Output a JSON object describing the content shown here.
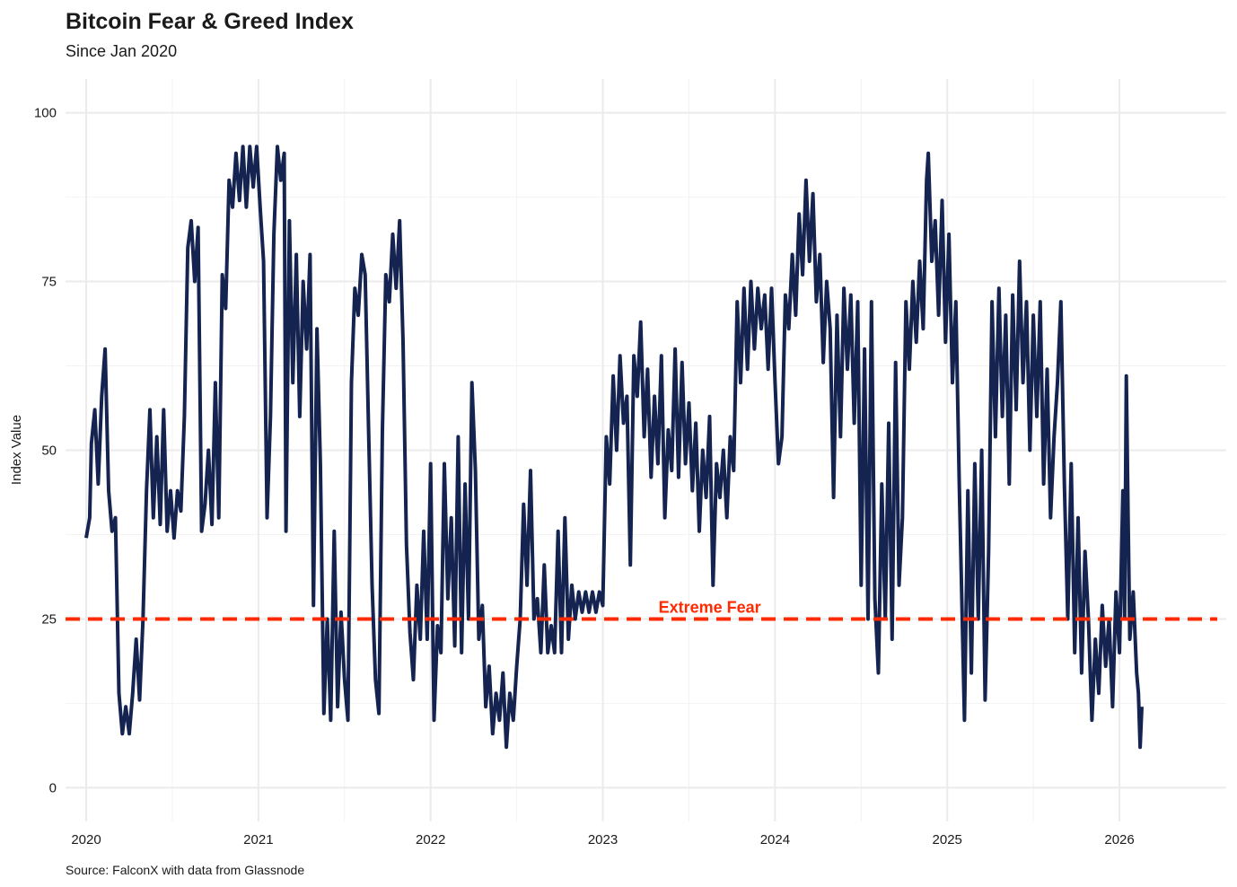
{
  "chart_data": {
    "type": "line",
    "title": "Bitcoin Fear & Greed Index",
    "subtitle": "Since Jan 2020",
    "ylabel": "Index Value",
    "caption": "Source: FalconX with data from Glassnode",
    "xlim": [
      2019.88,
      2026.62
    ],
    "xticks": [
      2020,
      2021,
      2022,
      2023,
      2024,
      2025,
      2026
    ],
    "ylim": [
      -5,
      105
    ],
    "yticks": [
      0,
      25,
      50,
      75,
      100
    ],
    "grid": true,
    "hline": {
      "value": 25,
      "label": "Extreme Fear",
      "color": "#ff2a00"
    },
    "x": [
      2020.0,
      2020.02,
      2020.03,
      2020.05,
      2020.07,
      2020.09,
      2020.11,
      2020.13,
      2020.15,
      2020.17,
      2020.19,
      2020.21,
      2020.23,
      2020.25,
      2020.27,
      2020.29,
      2020.31,
      2020.33,
      2020.35,
      2020.37,
      2020.39,
      2020.41,
      2020.43,
      2020.45,
      2020.47,
      2020.49,
      2020.51,
      2020.53,
      2020.55,
      2020.57,
      2020.59,
      2020.61,
      2020.63,
      2020.65,
      2020.67,
      2020.69,
      2020.71,
      2020.73,
      2020.75,
      2020.77,
      2020.79,
      2020.81,
      2020.83,
      2020.85,
      2020.87,
      2020.89,
      2020.91,
      2020.93,
      2020.95,
      2020.97,
      2020.99,
      2021.01,
      2021.03,
      2021.05,
      2021.07,
      2021.09,
      2021.11,
      2021.13,
      2021.15,
      2021.16,
      2021.18,
      2021.2,
      2021.22,
      2021.24,
      2021.26,
      2021.28,
      2021.3,
      2021.32,
      2021.34,
      2021.36,
      2021.38,
      2021.4,
      2021.42,
      2021.44,
      2021.46,
      2021.48,
      2021.5,
      2021.52,
      2021.54,
      2021.56,
      2021.58,
      2021.6,
      2021.62,
      2021.64,
      2021.66,
      2021.68,
      2021.7,
      2021.72,
      2021.74,
      2021.76,
      2021.78,
      2021.8,
      2021.82,
      2021.84,
      2021.86,
      2021.88,
      2021.9,
      2021.92,
      2021.94,
      2021.96,
      2021.98,
      2022.0,
      2022.02,
      2022.04,
      2022.06,
      2022.08,
      2022.1,
      2022.12,
      2022.14,
      2022.16,
      2022.18,
      2022.2,
      2022.22,
      2022.24,
      2022.26,
      2022.28,
      2022.3,
      2022.32,
      2022.34,
      2022.36,
      2022.38,
      2022.4,
      2022.42,
      2022.44,
      2022.46,
      2022.48,
      2022.5,
      2022.52,
      2022.54,
      2022.56,
      2022.58,
      2022.6,
      2022.62,
      2022.64,
      2022.66,
      2022.68,
      2022.7,
      2022.72,
      2022.74,
      2022.76,
      2022.78,
      2022.8,
      2022.82,
      2022.84,
      2022.86,
      2022.88,
      2022.9,
      2022.92,
      2022.94,
      2022.96,
      2022.98,
      2023.0,
      2023.02,
      2023.04,
      2023.06,
      2023.08,
      2023.1,
      2023.12,
      2023.14,
      2023.16,
      2023.18,
      2023.2,
      2023.22,
      2023.24,
      2023.26,
      2023.28,
      2023.3,
      2023.32,
      2023.34,
      2023.36,
      2023.38,
      2023.4,
      2023.42,
      2023.44,
      2023.46,
      2023.48,
      2023.5,
      2023.52,
      2023.54,
      2023.56,
      2023.58,
      2023.6,
      2023.62,
      2023.64,
      2023.66,
      2023.68,
      2023.7,
      2023.72,
      2023.74,
      2023.76,
      2023.78,
      2023.8,
      2023.82,
      2023.84,
      2023.86,
      2023.88,
      2023.9,
      2023.92,
      2023.94,
      2023.96,
      2023.98,
      2024.0,
      2024.02,
      2024.04,
      2024.06,
      2024.08,
      2024.1,
      2024.12,
      2024.14,
      2024.16,
      2024.18,
      2024.2,
      2024.22,
      2024.24,
      2024.26,
      2024.28,
      2024.3,
      2024.32,
      2024.34,
      2024.36,
      2024.38,
      2024.4,
      2024.42,
      2024.44,
      2024.46,
      2024.48,
      2024.5,
      2024.52,
      2024.54,
      2024.56,
      2024.58,
      2024.6,
      2024.62,
      2024.64,
      2024.66,
      2024.68,
      2024.7,
      2024.72,
      2024.74,
      2024.76,
      2024.78,
      2024.8,
      2024.82,
      2024.84,
      2024.86,
      2024.88,
      2024.89,
      2024.91,
      2024.93,
      2024.95,
      2024.97,
      2024.99,
      2025.01,
      2025.03,
      2025.05,
      2025.07,
      2025.08,
      2025.1,
      2025.12,
      2025.14,
      2025.16,
      2025.18,
      2025.2,
      2025.22,
      2025.24,
      2025.26,
      2025.28,
      2025.3,
      2025.32,
      2025.34,
      2025.36,
      2025.38,
      2025.4,
      2025.42,
      2025.44,
      2025.46,
      2025.48,
      2025.5,
      2025.52,
      2025.54,
      2025.56,
      2025.58,
      2025.6,
      2025.62,
      2025.64,
      2025.66,
      2025.68,
      2025.7,
      2025.72,
      2025.74,
      2025.76,
      2025.78,
      2025.8,
      2025.82,
      2025.84,
      2025.86,
      2025.88,
      2025.9,
      2025.92,
      2025.94,
      2025.96,
      2025.98,
      2026.0,
      2026.02,
      2026.03,
      2026.04,
      2026.05,
      2026.06,
      2026.08,
      2026.1,
      2026.11,
      2026.12,
      2026.13
    ],
    "series": [
      {
        "color": "#14234f",
        "values": [
          37,
          40,
          51,
          56,
          45,
          58,
          65,
          44,
          38,
          40,
          14,
          8,
          12,
          8,
          14,
          22,
          13,
          25,
          44,
          56,
          40,
          52,
          39,
          56,
          38,
          44,
          37,
          44,
          41,
          55,
          80,
          84,
          75,
          83,
          38,
          42,
          50,
          39,
          60,
          40,
          76,
          71,
          90,
          86,
          94,
          87,
          95,
          86,
          95,
          89,
          95,
          86,
          78,
          40,
          55,
          82,
          95,
          90,
          94,
          38,
          84,
          60,
          79,
          55,
          75,
          65,
          79,
          27,
          68,
          48,
          11,
          25,
          10,
          38,
          12,
          26,
          16,
          10,
          60,
          74,
          70,
          79,
          76,
          53,
          30,
          16,
          11,
          53,
          76,
          72,
          82,
          74,
          84,
          66,
          36,
          23,
          16,
          30,
          22,
          38,
          22,
          48,
          10,
          24,
          20,
          48,
          28,
          40,
          21,
          52,
          20,
          45,
          25,
          60,
          47,
          22,
          27,
          12,
          18,
          8,
          14,
          10,
          17,
          6,
          14,
          10,
          18,
          25,
          42,
          30,
          47,
          25,
          28,
          20,
          33,
          20,
          24,
          20,
          38,
          20,
          40,
          22,
          30,
          25,
          29,
          26,
          29,
          26,
          29,
          26,
          29,
          27,
          52,
          45,
          61,
          50,
          64,
          54,
          58,
          33,
          64,
          58,
          69,
          52,
          62,
          46,
          58,
          48,
          64,
          40,
          53,
          47,
          65,
          46,
          63,
          48,
          57,
          44,
          54,
          38,
          50,
          43,
          55,
          30,
          48,
          43,
          50,
          40,
          52,
          47,
          72,
          60,
          74,
          62,
          75,
          65,
          74,
          68,
          73,
          62,
          74,
          60,
          48,
          52,
          73,
          68,
          79,
          70,
          85,
          76,
          90,
          78,
          88,
          72,
          79,
          63,
          75,
          68,
          43,
          70,
          52,
          74,
          62,
          73,
          54,
          72,
          30,
          65,
          25,
          72,
          28,
          17,
          45,
          25,
          54,
          22,
          63,
          30,
          40,
          72,
          62,
          75,
          66,
          78,
          68,
          90,
          94,
          78,
          84,
          70,
          87,
          66,
          82,
          60,
          72,
          45,
          33,
          10,
          44,
          17,
          48,
          25,
          50,
          13,
          35,
          72,
          52,
          74,
          55,
          70,
          45,
          73,
          56,
          78,
          60,
          72,
          50,
          70,
          55,
          72,
          45,
          62,
          40,
          52,
          60,
          72,
          45,
          25,
          48,
          20,
          40,
          17,
          35,
          25,
          10,
          22,
          14,
          27,
          18,
          25,
          12,
          29,
          20,
          44,
          25,
          61,
          40,
          22,
          29,
          17,
          14,
          6,
          12
        ]
      }
    ]
  }
}
